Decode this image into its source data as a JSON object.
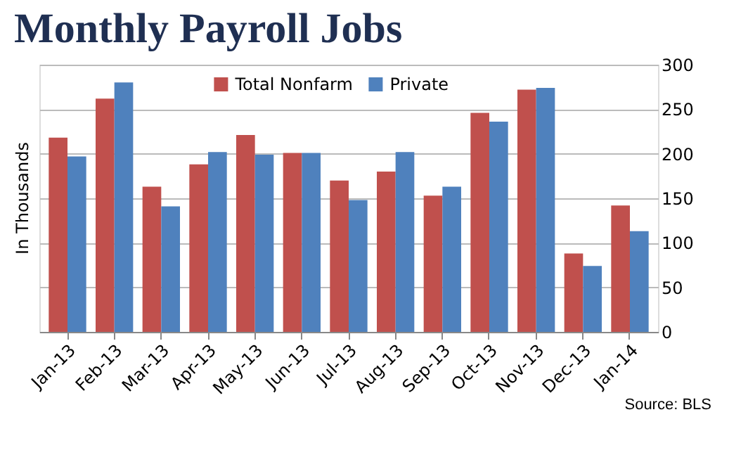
{
  "chart_data": {
    "type": "bar",
    "title": "Monthly Payroll Jobs",
    "ylabel": "In Thousands",
    "categories": [
      "Jan-13",
      "Feb-13",
      "Mar-13",
      "Apr-13",
      "May-13",
      "Jun-13",
      "Jul-13",
      "Aug-13",
      "Sep-13",
      "Oct-13",
      "Nov-13",
      "Dec-13",
      "Jan-14"
    ],
    "series": [
      {
        "name": "Total Nonfarm",
        "color": "#c0504d",
        "values": [
          218,
          262,
          163,
          188,
          221,
          201,
          170,
          180,
          153,
          246,
          272,
          88,
          142
        ]
      },
      {
        "name": "Private",
        "color": "#4f81bd",
        "values": [
          197,
          280,
          141,
          202,
          199,
          201,
          148,
          202,
          163,
          236,
          274,
          74,
          113
        ]
      }
    ],
    "ylim": [
      0,
      300
    ],
    "yticks": [
      0,
      50,
      100,
      150,
      200,
      250,
      300
    ],
    "grid": "y",
    "legend": "top",
    "annotations": [
      "Source:  BLS"
    ]
  }
}
